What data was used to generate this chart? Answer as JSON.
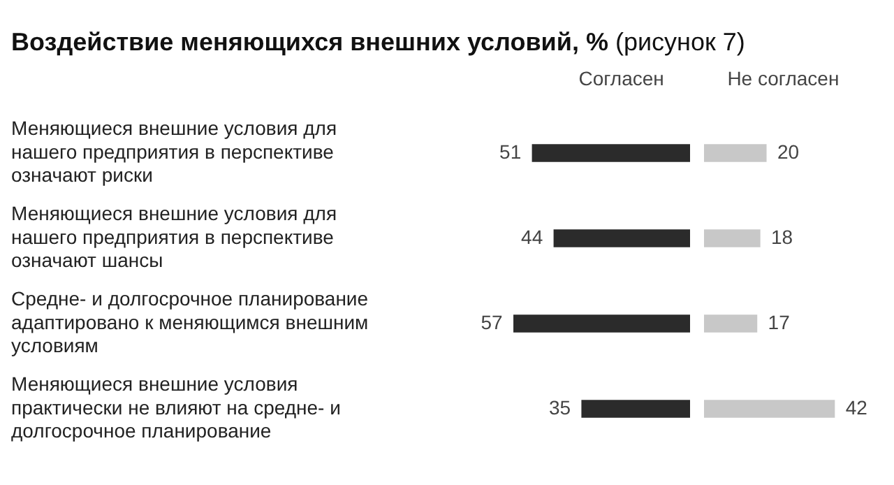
{
  "chart_data": [
    {
      "type": "bar",
      "orientation": "horizontal",
      "title": "Воздействие меняющихся внешних условий, %",
      "subtitle": "(рисунок 7)",
      "categories": [
        "Меняющиеся внешние условия для нашего предприятия в перспективе означают риски",
        "Меняющиеся внешние условия для нашего предприятия в перспективе означают шансы",
        "Средне- и долгосрочное планирование адаптировано к меняющимся внешним условиям",
        "Меняющиеся внешние условия практически не влияют на средне- и долгосрочное планирование"
      ],
      "series": [
        {
          "name": "Согласен",
          "color": "#2b2b2b",
          "values": [
            51,
            44,
            57,
            35
          ]
        }
      ],
      "data_labels": true,
      "legend": "top"
    },
    {
      "type": "bar",
      "orientation": "horizontal",
      "categories": [
        null,
        null,
        null,
        null
      ],
      "series": [
        {
          "name": "Не согласен",
          "color": "#c8c8c8",
          "values": [
            20,
            18,
            17,
            42
          ]
        }
      ],
      "data_labels": true,
      "legend": "top",
      "tick_labels": false
    }
  ]
}
